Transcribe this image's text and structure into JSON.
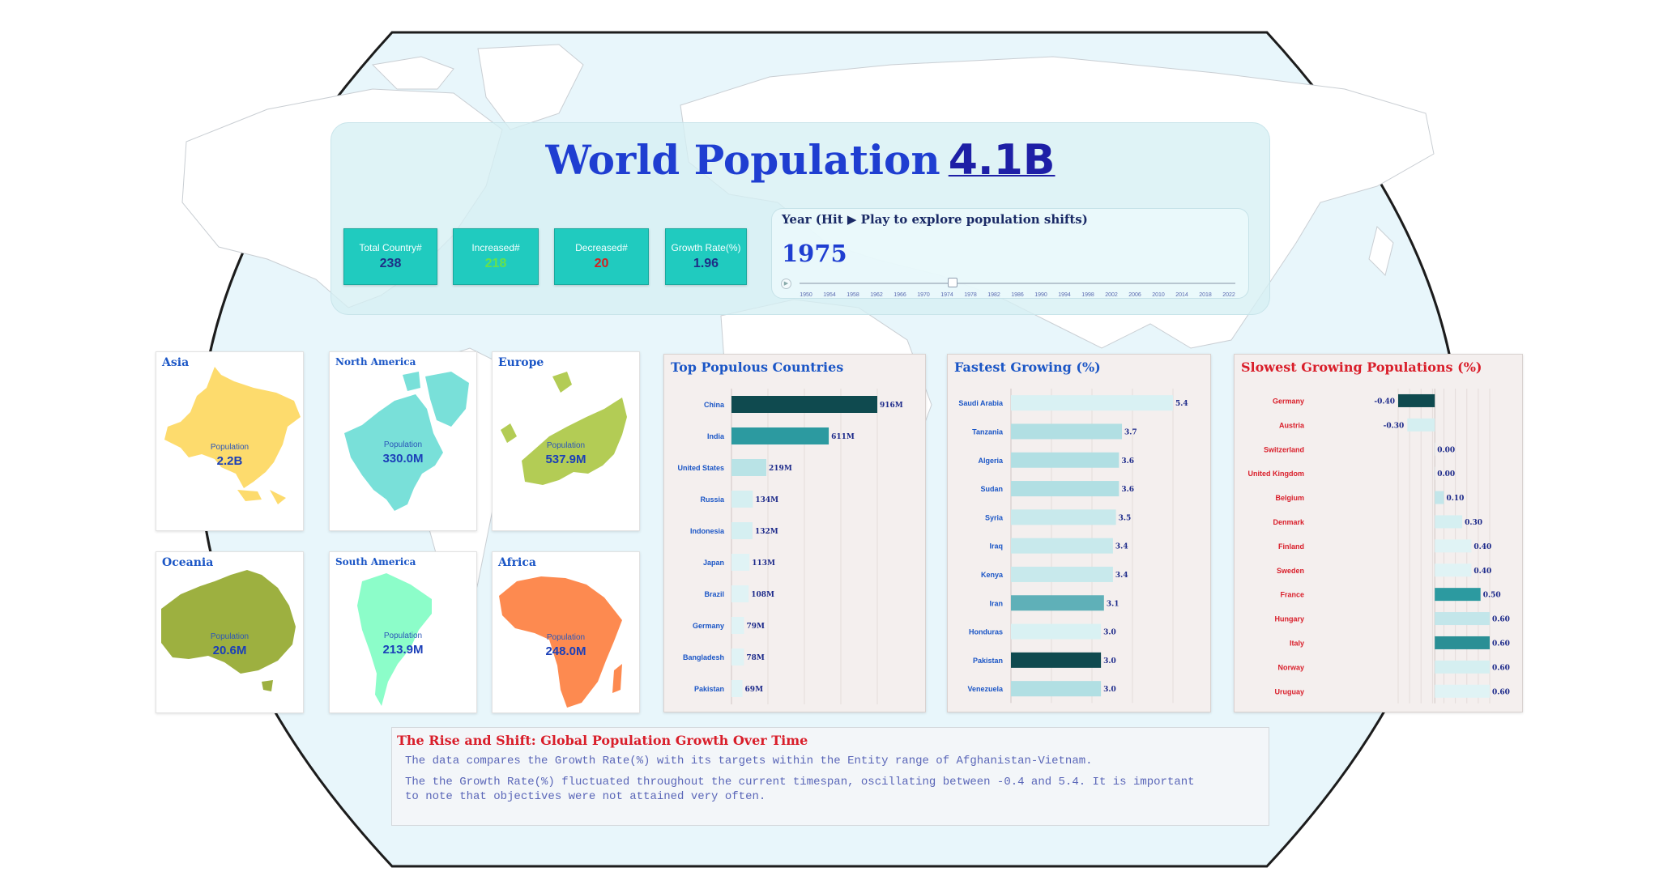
{
  "header": {
    "title": "World Population",
    "total_population": "4.1B"
  },
  "kpis": [
    {
      "label": "Total Country#",
      "value": "238",
      "color": "#1e2f86"
    },
    {
      "label": "Increased#",
      "value": "218",
      "color": "#67e24a"
    },
    {
      "label": "Decreased#",
      "value": "20",
      "color": "#d32020"
    },
    {
      "label": "Growth Rate(%)",
      "value": "1.96",
      "color": "#1e2f86"
    }
  ],
  "year_slider": {
    "label": "Year (Hit ▶ Play to explore population shifts)",
    "current_year": "1975",
    "selected": 1975,
    "ticks": [
      "1950",
      "1954",
      "1958",
      "1962",
      "1966",
      "1970",
      "1974",
      "1978",
      "1982",
      "1986",
      "1990",
      "1994",
      "1998",
      "2002",
      "2006",
      "2010",
      "2014",
      "2018",
      "2022"
    ]
  },
  "continents": [
    {
      "name": "Asia",
      "population_label": "Population",
      "population": "2.2B",
      "color": "#fddb6d"
    },
    {
      "name": "North America",
      "population_label": "Population",
      "population": "330.0M",
      "color": "#79e0d9"
    },
    {
      "name": "Europe",
      "population_label": "Population",
      "population": "537.9M",
      "color": "#b3cc55"
    },
    {
      "name": "Oceania",
      "population_label": "Population",
      "population": "20.6M",
      "color": "#9db040"
    },
    {
      "name": "South America",
      "population_label": "Population",
      "population": "213.9M",
      "color": "#8cfdc9"
    },
    {
      "name": "Africa",
      "population_label": "Population",
      "population": "248.0M",
      "color": "#fd8a50"
    }
  ],
  "chart_data": [
    {
      "type": "bar",
      "orientation": "horizontal",
      "title": "Top Populous Countries",
      "categories": [
        "China",
        "India",
        "United States",
        "Russia",
        "Indonesia",
        "Japan",
        "Brazil",
        "Germany",
        "Bangladesh",
        "Pakistan"
      ],
      "values": [
        916,
        611,
        219,
        134,
        132,
        113,
        108,
        79,
        78,
        69
      ],
      "value_labels": [
        "916M",
        "611M",
        "219M",
        "134M",
        "132M",
        "113M",
        "108M",
        "79M",
        "78M",
        "69M"
      ],
      "colors": [
        "#0f4a4f",
        "#2c9aa0",
        "#b9e3e6",
        "#d5eff1",
        "#d5eff1",
        "#e0f3f5",
        "#e0f3f5",
        "#e0f3f5",
        "#e0f3f5",
        "#e0f3f5"
      ],
      "xlim": [
        0,
        916
      ]
    },
    {
      "type": "bar",
      "orientation": "horizontal",
      "title": "Fastest Growing (%)",
      "categories": [
        "Saudi Arabia",
        "Tanzania",
        "Algeria",
        "Sudan",
        "Syria",
        "Iraq",
        "Kenya",
        "Iran",
        "Honduras",
        "Pakistan",
        "Venezuela"
      ],
      "values": [
        5.4,
        3.7,
        3.6,
        3.6,
        3.5,
        3.4,
        3.4,
        3.1,
        3.0,
        3.0,
        3.0
      ],
      "value_labels": [
        "5.4",
        "3.7",
        "3.6",
        "3.6",
        "3.5",
        "3.4",
        "3.4",
        "3.1",
        "3.0",
        "3.0",
        "3.0"
      ],
      "colors": [
        "#d9f1f3",
        "#b1dfe3",
        "#b1dfe3",
        "#b1dfe3",
        "#c8e9ec",
        "#c8e9ec",
        "#c8e9ec",
        "#5fb0b8",
        "#d9f1f3",
        "#0f4a4f",
        "#b1dfe3"
      ],
      "xlim": [
        0,
        5.4
      ]
    },
    {
      "type": "bar",
      "orientation": "horizontal",
      "title": "Slowest Growing Populations (%)",
      "categories": [
        "Germany",
        "Austria",
        "Switzerland",
        "United Kingdom",
        "Belgium",
        "Denmark",
        "Finland",
        "Sweden",
        "France",
        "Hungary",
        "Italy",
        "Norway",
        "Uruguay"
      ],
      "values": [
        -0.4,
        -0.3,
        0.0,
        0.0,
        0.1,
        0.3,
        0.4,
        0.4,
        0.5,
        0.6,
        0.6,
        0.6,
        0.6
      ],
      "value_labels": [
        "-0.40",
        "-0.30",
        "0.00",
        "0.00",
        "0.10",
        "0.30",
        "0.40",
        "0.40",
        "0.50",
        "0.60",
        "0.60",
        "0.60",
        "0.60"
      ],
      "colors": [
        "#0f4a4f",
        "#d5eff1",
        "#e0f3f5",
        "#e0f3f5",
        "#c3e6ea",
        "#d5eff1",
        "#e0f3f5",
        "#e0f3f5",
        "#2c9aa0",
        "#c3e6ea",
        "#2a8f95",
        "#d5eff1",
        "#e0f3f5"
      ],
      "xlim": [
        -0.4,
        0.6
      ]
    }
  ],
  "story": {
    "title": "The Rise and Shift: Global Population Growth Over Time",
    "line1": "The data compares the Growth Rate(%) with its targets within the Entity range of Afghanistan-Vietnam.",
    "line2": "The the Growth Rate(%) fluctuated throughout the current timespan, oscillating between -0.4 and 5.4. It is important",
    "line3": "to note that objectives were not attained very often."
  },
  "colors": {
    "ocean": "#e8f6fb",
    "land": "#ffffff",
    "title_blue": "#1f3ed1",
    "kpi_teal": "#20cbbf",
    "panel_bg": "#f4efee",
    "label_blue": "#1b56c6",
    "label_red": "#d91e2a",
    "value_blue": "#1d2a8a"
  }
}
